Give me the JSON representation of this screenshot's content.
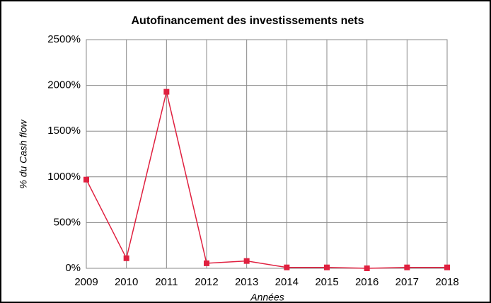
{
  "chart_data": {
    "type": "line",
    "title": "Autofinancement des investissements nets",
    "x_label": "Années",
    "y_label": "% du Cash flow",
    "x": [
      2009,
      2010,
      2011,
      2012,
      2013,
      2014,
      2015,
      2016,
      2017,
      2018
    ],
    "series": [
      {
        "name": "Autofinancement",
        "color": "#e0203f",
        "values": [
          970,
          110,
          1930,
          55,
          80,
          10,
          10,
          0,
          10,
          10
        ]
      }
    ],
    "xlim": [
      2009,
      2018
    ],
    "xticks": [
      2009,
      2010,
      2011,
      2012,
      2013,
      2014,
      2015,
      2016,
      2017,
      2018
    ],
    "ylim": [
      0,
      2500
    ],
    "yticks": [
      {
        "value": 0,
        "label": "0%"
      },
      {
        "value": 500,
        "label": "500%"
      },
      {
        "value": 1000,
        "label": "1000%"
      },
      {
        "value": 1500,
        "label": "1500%"
      },
      {
        "value": 2000,
        "label": "2000%"
      },
      {
        "value": 2500,
        "label": "2500%"
      }
    ],
    "grid": true,
    "legend": false
  }
}
